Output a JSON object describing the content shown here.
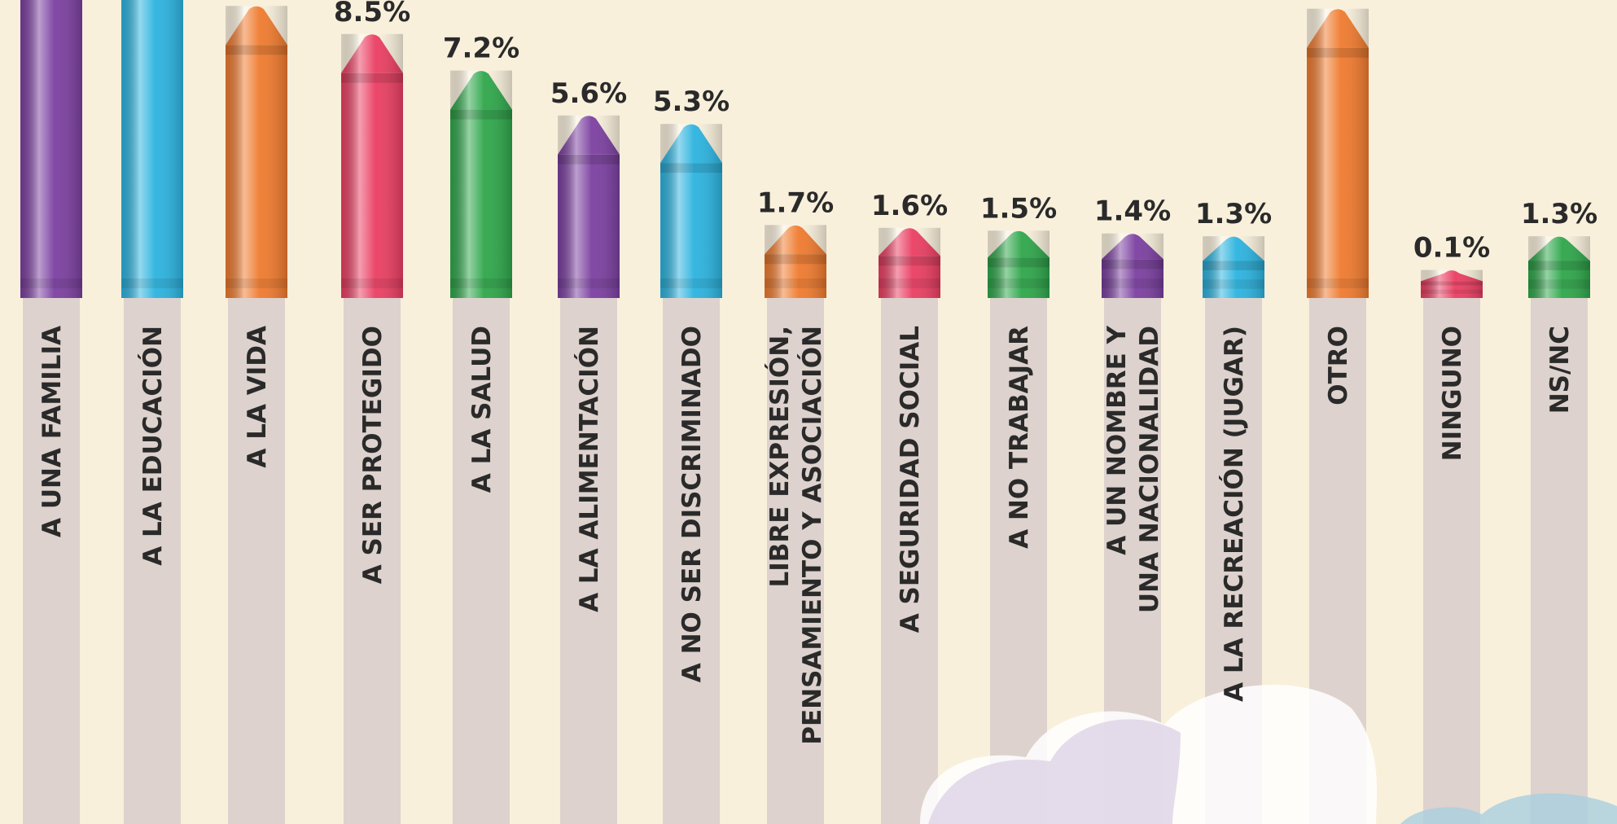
{
  "chart_data": {
    "type": "bar",
    "categories": [
      "A UNA FAMILIA",
      "A LA EDUCACIÓN",
      "A LA VIDA",
      "A SER PROTEGIDO",
      "A LA SALUD",
      "A LA ALIMENTACIÓN",
      "A NO SER DISCRIMINADO",
      [
        "LIBRE EXPRESIÓN,",
        "PENSAMIENTO Y ASOCIACIÓN"
      ],
      "A SEGURIDAD SOCIAL",
      "A NO TRABAJAR",
      [
        "A UN NOMBRE Y",
        "UNA NACIONALIDAD"
      ],
      "A LA RECREACIÓN (JUGAR)",
      "OTRO",
      "NINGUNO",
      "NS/NC"
    ],
    "values": [
      14,
      12,
      9.5,
      8.5,
      7.2,
      5.6,
      5.3,
      1.7,
      1.6,
      1.5,
      1.4,
      1.3,
      9.4,
      0.1,
      1.3
    ],
    "value_labels": [
      null,
      null,
      null,
      "8.5%",
      "7.2%",
      "5.6%",
      "5.3%",
      "1.7%",
      "1.6%",
      "1.5%",
      "1.4%",
      "1.3%",
      "9.4%",
      "0.1%",
      "1.3%"
    ],
    "colors": [
      "#7b3fa0",
      "#2bb3df",
      "#ef7a2e",
      "#ea3e62",
      "#2ea64a",
      "#7b3fa0",
      "#2bb3df",
      "#ef7a2e",
      "#ea3e62",
      "#2ea64a",
      "#7b3fa0",
      "#2bb3df",
      "#ef7a2e",
      "#ea3e62",
      "#2ea64a"
    ]
  }
}
